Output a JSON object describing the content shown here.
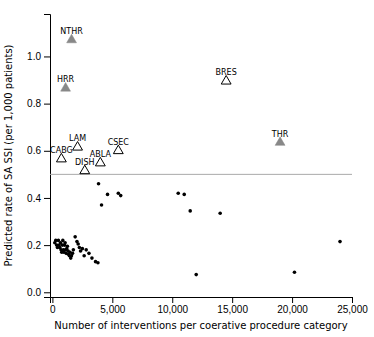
{
  "chart_data": {
    "type": "scatter",
    "xlabel": "Number of interventions per coerative procedure category",
    "ylabel": "Predicted rate of SA SSI (per 1,000 patients)",
    "xlim": [
      -200,
      25000
    ],
    "ylim": [
      -0.02,
      1.18
    ],
    "xticks": [
      0,
      {
        "value": 5000,
        "label": "5,000"
      },
      {
        "value": 10000,
        "label": "10,000"
      },
      {
        "value": 15000,
        "label": "15,000"
      },
      {
        "value": 20000,
        "label": "20,000"
      },
      {
        "value": 25000,
        "label": "25,000"
      }
    ],
    "yticks": [
      {
        "value": 0,
        "label": "0.0"
      },
      0.2,
      0.4,
      0.6,
      0.8,
      {
        "value": 1,
        "label": "1.0"
      }
    ],
    "threshold": 0.5,
    "series": [
      {
        "type": "scatter",
        "marker": "circle",
        "color": "#000000",
        "x": [
          200,
          280,
          350,
          420,
          500,
          560,
          620,
          680,
          720,
          780,
          830,
          870,
          920,
          960,
          1010,
          1060,
          1100,
          1150,
          1200,
          1250,
          1310,
          1360,
          1420,
          1470,
          1530,
          1590,
          1680,
          1750,
          1900,
          2050,
          2150,
          2250,
          2350,
          2500,
          2650,
          2820,
          3050,
          3300,
          3600,
          3800,
          3850,
          4100,
          4600,
          5500,
          5700,
          10500,
          11000,
          11500,
          14000,
          12000,
          20200,
          24000
        ],
        "values": [
          0.21,
          0.22,
          0.2,
          0.19,
          0.22,
          0.2,
          0.19,
          0.21,
          0.18,
          0.17,
          0.2,
          0.22,
          0.18,
          0.17,
          0.2,
          0.21,
          0.18,
          0.165,
          0.185,
          0.195,
          0.175,
          0.16,
          0.155,
          0.17,
          0.145,
          0.155,
          0.165,
          0.18,
          0.235,
          0.215,
          0.205,
          0.19,
          0.175,
          0.185,
          0.155,
          0.18,
          0.165,
          0.145,
          0.13,
          0.125,
          0.46,
          0.37,
          0.415,
          0.42,
          0.41,
          0.42,
          0.415,
          0.345,
          0.335,
          0.075,
          0.085,
          0.215
        ]
      },
      {
        "type": "scatter",
        "marker": "filled_triangle",
        "color": "#888888",
        "x": [
          1600,
          1100,
          19000
        ],
        "values": [
          1.07,
          0.865,
          0.635
        ],
        "labels": [
          "NTHR",
          "HRR",
          "THR"
        ]
      },
      {
        "type": "scatter",
        "marker": "open_triangle",
        "color": "#000000",
        "x": [
          14500,
          2100,
          750,
          2700,
          5500,
          4000
        ],
        "values": [
          0.895,
          0.615,
          0.565,
          0.515,
          0.6,
          0.548
        ],
        "labels": [
          "BRES",
          "LAM",
          "CABG",
          "DISH",
          "CSEC",
          "ABLA"
        ]
      }
    ]
  }
}
